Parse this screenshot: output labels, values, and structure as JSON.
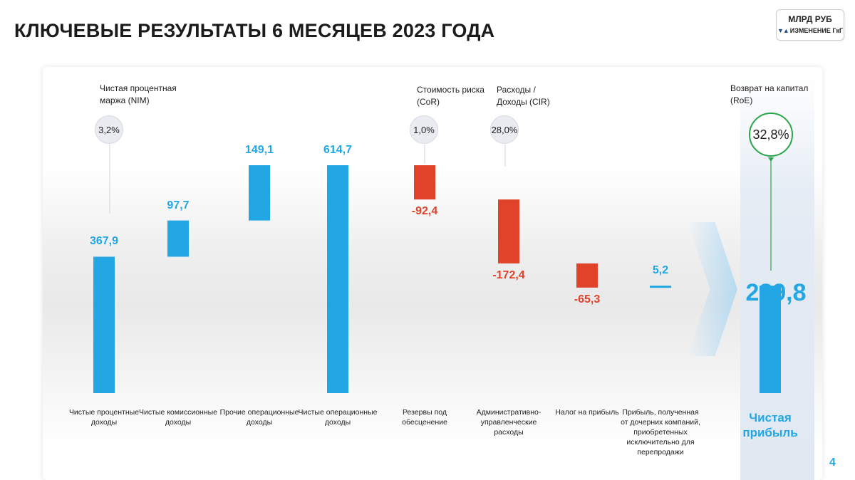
{
  "title": "КЛЮЧЕВЫЕ РЕЗУЛЬТАТЫ 6 МЕСЯЦЕВ 2023 ГОДА",
  "units": {
    "main": "МЛРД РУБ",
    "arrows": "▼▲",
    "change": "ИЗМЕНЕНИЕ ГкГ"
  },
  "page_number": "4",
  "colors": {
    "positive": "#22a7e4",
    "negative": "#e0432a",
    "kpi_highlight": "#2aa54a"
  },
  "kpis": {
    "nim": {
      "label": "Чистая процентная маржа (NIM)",
      "value": "3,2%"
    },
    "cor": {
      "label": "Стоимость риска (CoR)",
      "value": "1,0%"
    },
    "cir": {
      "label": "Расходы / Доходы (CIR)",
      "value": "28,0%"
    },
    "roe": {
      "label": "Возврат на капитал (RoE)",
      "value": "32,8%"
    }
  },
  "chart_data": {
    "type": "bar",
    "subtype": "waterfall",
    "unit": "млрд руб",
    "categories": [
      "Чистые процентные доходы",
      "Чистые комиссионные доходы",
      "Прочие операционные доходы",
      "Чистые операционные доходы",
      "Резервы под обесценение",
      "Административно-управленческие расходы",
      "Налог на прибыль",
      "Прибыль, полученная от дочерних компаний, приобретенных исключительно для перепродажи",
      "Чистая прибыль"
    ],
    "values": [
      367.9,
      97.7,
      149.1,
      614.7,
      -92.4,
      -172.4,
      -65.3,
      5.2,
      289.8
    ],
    "value_labels": [
      "367,9",
      "97,7",
      "149,1",
      "614,7",
      "-92,4",
      "-172,4",
      "-65,3",
      "5,2",
      "289,8"
    ],
    "kinds": [
      "increase",
      "increase",
      "increase",
      "total",
      "decrease",
      "decrease",
      "decrease",
      "increase",
      "total"
    ],
    "ylim": [
      0,
      614.7
    ],
    "grid": false,
    "legend": "none"
  }
}
